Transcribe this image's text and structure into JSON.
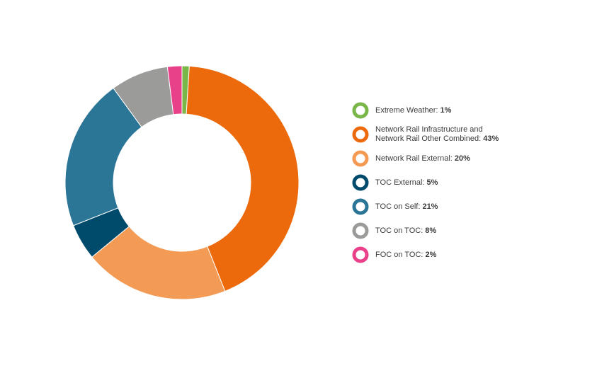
{
  "chart_data": {
    "type": "pie",
    "variant": "donut",
    "title": "",
    "legend_position": "right",
    "series": [
      {
        "name": "Extreme Weather",
        "legend_label": "Extreme Weather:",
        "value": 1,
        "value_label": "1%",
        "color": "#7ab648"
      },
      {
        "name": "Network Rail Infrastructure and Network Rail Other Combined",
        "legend_label": "Network Rail Infrastructure and\nNetwork Rail Other Combined:",
        "value": 43,
        "value_label": "43%",
        "color": "#ec6a0c"
      },
      {
        "name": "Network Rail External",
        "legend_label": "Network Rail External:",
        "value": 20,
        "value_label": "20%",
        "color": "#f39a55"
      },
      {
        "name": "TOC External",
        "legend_label": "TOC External:",
        "value": 5,
        "value_label": "5%",
        "color": "#004b6c"
      },
      {
        "name": "TOC on Self",
        "legend_label": "TOC on Self:",
        "value": 21,
        "value_label": "21%",
        "color": "#2b7597"
      },
      {
        "name": "TOC on TOC",
        "legend_label": "TOC on TOC:",
        "value": 8,
        "value_label": "8%",
        "color": "#9b9b9a"
      },
      {
        "name": "FOC on TOC",
        "legend_label": "FOC on TOC:",
        "value": 2,
        "value_label": "2%",
        "color": "#e9408a"
      }
    ]
  }
}
